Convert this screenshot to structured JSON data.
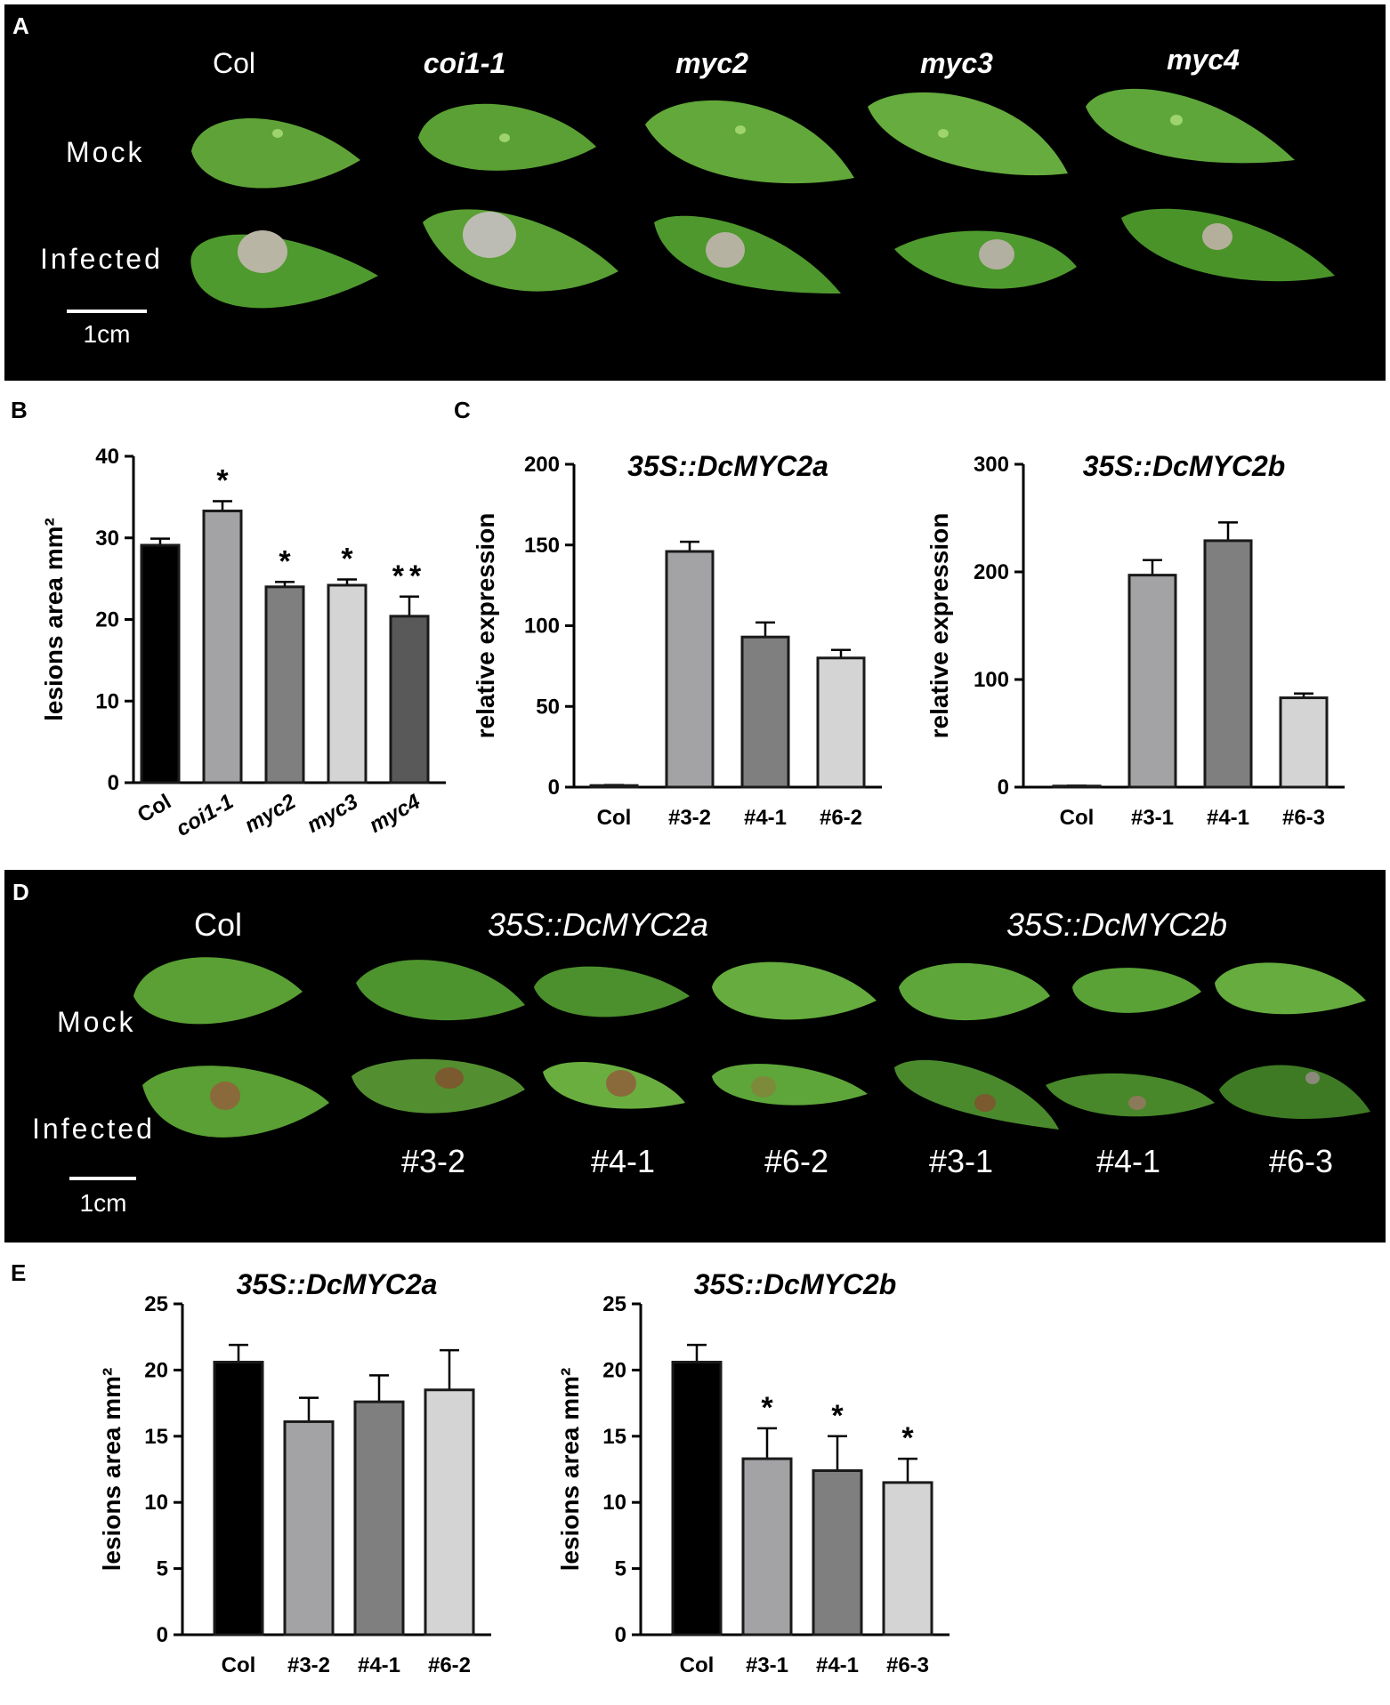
{
  "panels": {
    "A": {
      "letter": "A",
      "genotypes": [
        "Col",
        "coi1-1",
        "myc2",
        "myc3",
        "myc4"
      ],
      "row_labels": [
        "Mock",
        "Infected"
      ],
      "scale_bar": "1cm"
    },
    "B": {
      "letter": "B"
    },
    "C": {
      "letter": "C"
    },
    "D": {
      "letter": "D",
      "groups": [
        "Col",
        "35S::DcMYC2a",
        "35S::DcMYC2b"
      ],
      "row_labels": [
        "Mock",
        "Infected"
      ],
      "line_labels": [
        "#3-2",
        "#4-1",
        "#6-2",
        "#3-1",
        "#4-1",
        "#6-3"
      ],
      "scale_bar": "1cm"
    },
    "E": {
      "letter": "E"
    }
  },
  "colors": {
    "black": "#000000",
    "light_gray": "#a3a3a6",
    "mid_gray": "#7f7f7f",
    "pale_gray": "#d4d4d4",
    "dark_gray": "#595959",
    "leaf_green": "#5fa338",
    "photo_bg": "#000000"
  },
  "chart_data": [
    {
      "id": "B",
      "type": "bar",
      "title": "",
      "ylabel": "lesions area mm²",
      "categories": [
        "Col",
        "coi1-1",
        "myc2",
        "myc3",
        "myc4"
      ],
      "values": [
        29.1,
        33.3,
        24.0,
        24.2,
        20.4
      ],
      "errors": [
        0.8,
        1.2,
        0.6,
        0.7,
        2.4
      ],
      "significance": [
        "",
        "*",
        "*",
        "*",
        "**"
      ],
      "fills": [
        "#000000",
        "#a3a3a6",
        "#7f7f7f",
        "#d4d4d4",
        "#595959"
      ],
      "ylim": [
        0,
        40
      ],
      "yticks": [
        0,
        10,
        20,
        30,
        40
      ],
      "italic_categories": true,
      "rotate_labels": true
    },
    {
      "id": "C1",
      "type": "bar",
      "title": "35S::DcMYC2a",
      "ylabel": "relative expression",
      "categories": [
        "Col",
        "#3-2",
        "#4-1",
        "#6-2"
      ],
      "values": [
        1,
        146,
        93,
        80
      ],
      "errors": [
        0.3,
        6,
        9,
        5
      ],
      "significance": [
        "",
        "",
        "",
        ""
      ],
      "fills": [
        "#000000",
        "#a3a3a6",
        "#7f7f7f",
        "#d4d4d4"
      ],
      "ylim": [
        0,
        200
      ],
      "yticks": [
        0,
        50,
        100,
        150,
        200
      ]
    },
    {
      "id": "C2",
      "type": "bar",
      "title": "35S::DcMYC2b",
      "ylabel": "relative expression",
      "categories": [
        "Col",
        "#3-1",
        "#4-1",
        "#6-3"
      ],
      "values": [
        1,
        197,
        229,
        83
      ],
      "errors": [
        0.3,
        14,
        17,
        4
      ],
      "significance": [
        "",
        "",
        "",
        ""
      ],
      "fills": [
        "#000000",
        "#a3a3a6",
        "#7f7f7f",
        "#d4d4d4"
      ],
      "ylim": [
        0,
        300
      ],
      "yticks": [
        0,
        100,
        200,
        300
      ]
    },
    {
      "id": "E1",
      "type": "bar",
      "title": "35S::DcMYC2a",
      "ylabel": "lesions area mm²",
      "categories": [
        "Col",
        "#3-2",
        "#4-1",
        "#6-2"
      ],
      "values": [
        20.6,
        16.1,
        17.6,
        18.5
      ],
      "errors": [
        1.3,
        1.8,
        2.0,
        3.0
      ],
      "significance": [
        "",
        "",
        "",
        ""
      ],
      "fills": [
        "#000000",
        "#a3a3a6",
        "#7f7f7f",
        "#d4d4d4"
      ],
      "ylim": [
        0,
        25
      ],
      "yticks": [
        0,
        5,
        10,
        15,
        20,
        25
      ]
    },
    {
      "id": "E2",
      "type": "bar",
      "title": "35S::DcMYC2b",
      "ylabel": "lesions area mm²",
      "categories": [
        "Col",
        "#3-1",
        "#4-1",
        "#6-3"
      ],
      "values": [
        20.6,
        13.3,
        12.4,
        11.5
      ],
      "errors": [
        1.3,
        2.3,
        2.6,
        1.8
      ],
      "significance": [
        "",
        "*",
        "*",
        "*"
      ],
      "fills": [
        "#000000",
        "#a3a3a6",
        "#7f7f7f",
        "#d4d4d4"
      ],
      "ylim": [
        0,
        25
      ],
      "yticks": [
        0,
        5,
        10,
        15,
        20,
        25
      ]
    }
  ]
}
